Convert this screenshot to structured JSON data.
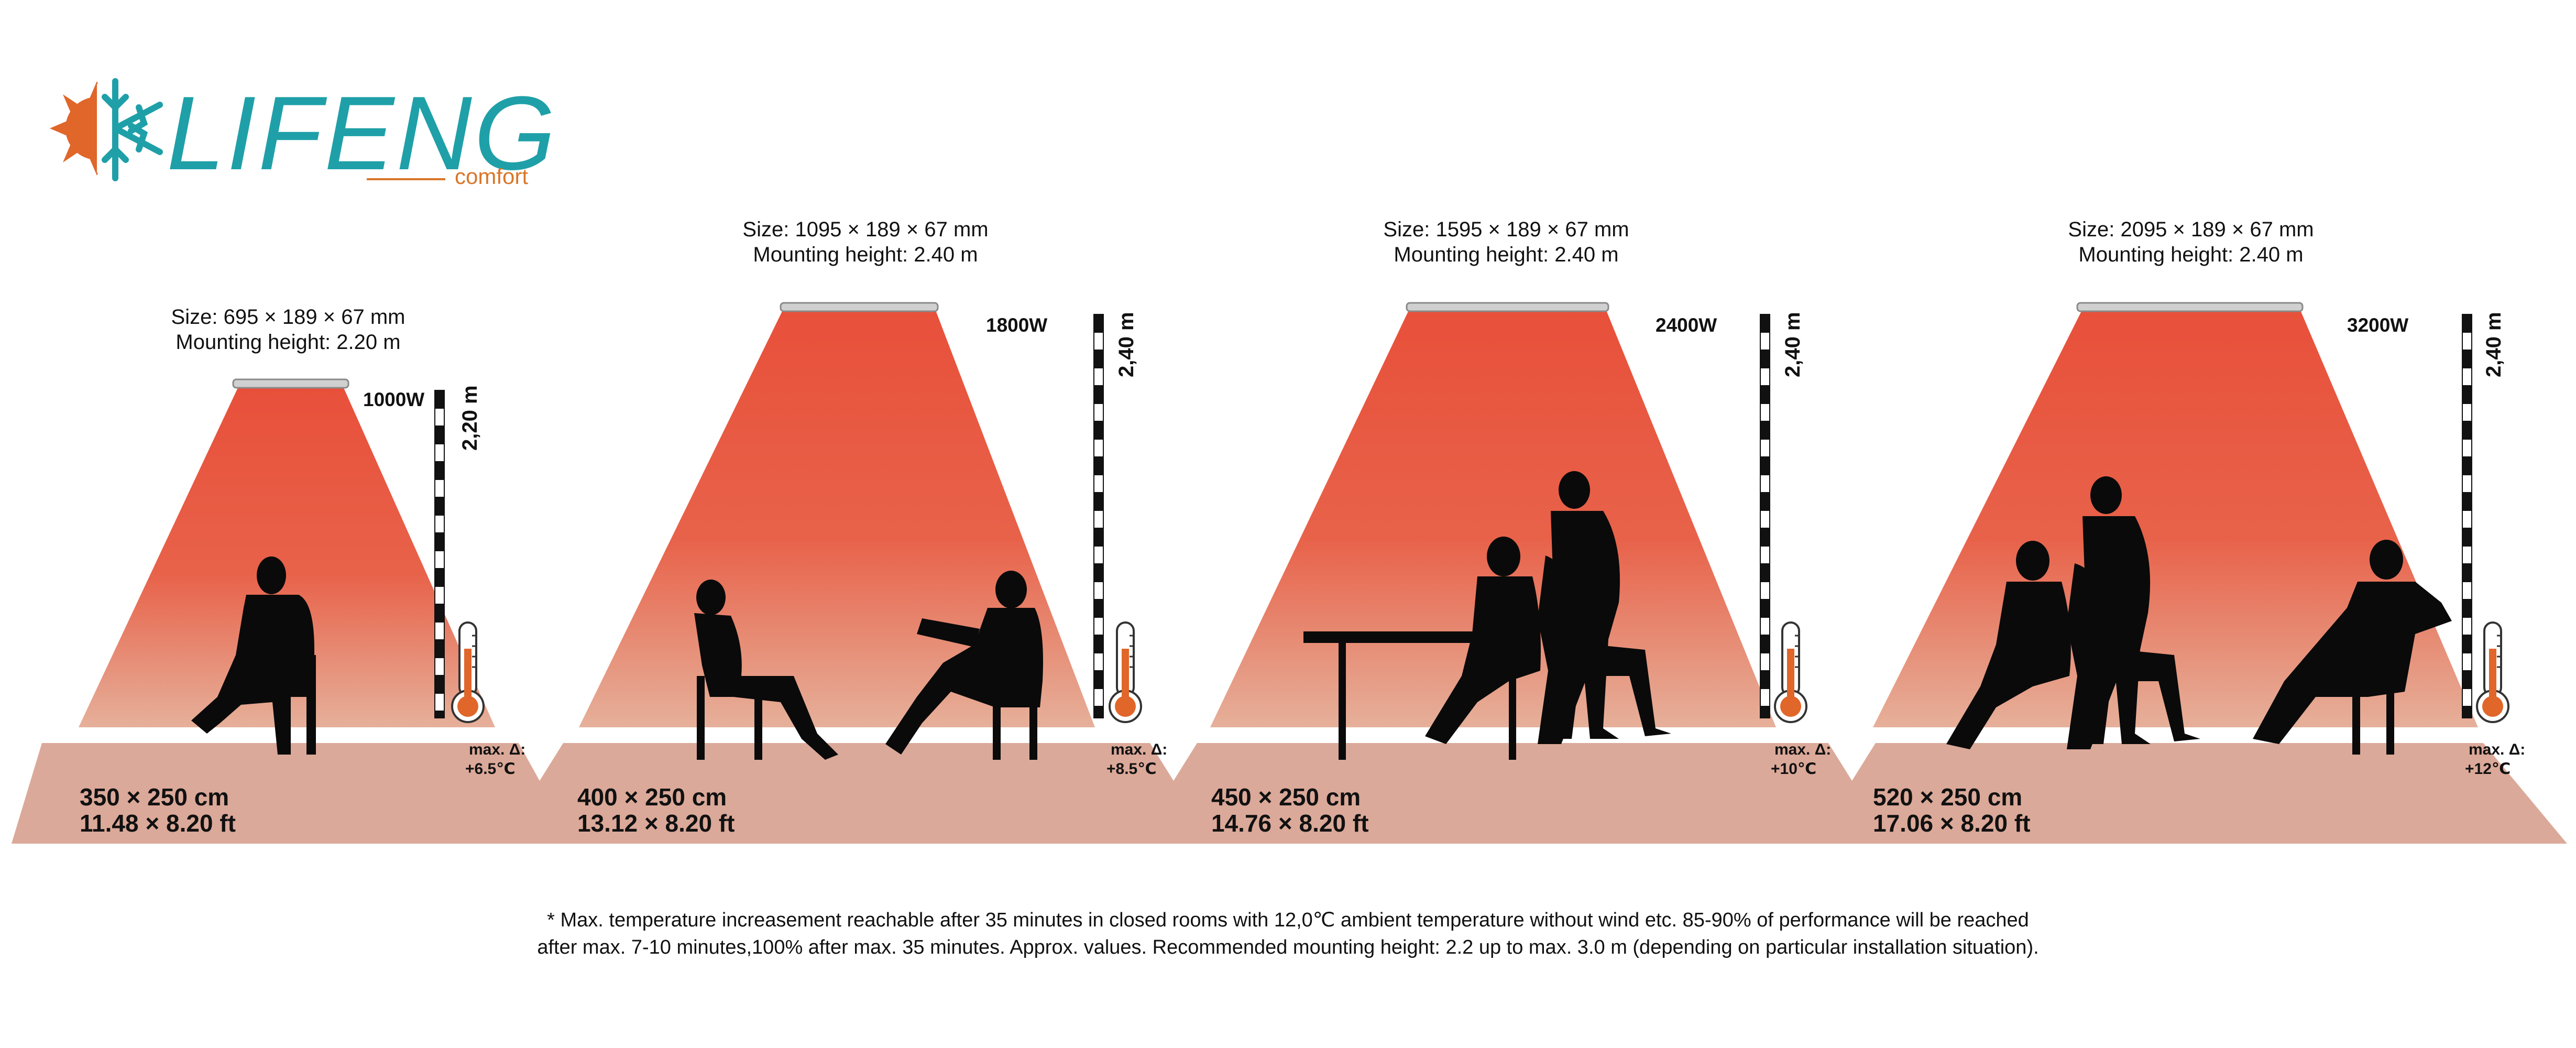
{
  "brand": {
    "name": "LIFENG",
    "tagline": "comfort",
    "color_primary": "#1fa0a8",
    "color_accent": "#e0662a"
  },
  "colors": {
    "heat_top": "#e8503a",
    "heat_bottom": "#e6b09a",
    "floor": "#dba999",
    "silhouette": "#0a0a0a",
    "ruler_dark": "#111111",
    "ruler_light": "#ffffff"
  },
  "heaters": [
    {
      "size": "Size: 695 × 189 × 67 mm",
      "mounting": "Mounting height: 2.20 m",
      "power": "1000W",
      "height": "2,20 m",
      "room_m": "350 × 250 cm",
      "room_ft": "11.48 × 8.20 ft",
      "delta_label": "max. Δ:",
      "delta_value": "+6.5℃"
    },
    {
      "size": "Size: 1095 × 189 × 67 mm",
      "mounting": "Mounting height: 2.40 m",
      "power": "1800W",
      "height": "2,40 m",
      "room_m": "400 × 250 cm",
      "room_ft": "13.12 × 8.20 ft",
      "delta_label": "max. Δ:",
      "delta_value": "+8.5℃"
    },
    {
      "size": "Size: 1595 × 189 × 67 mm",
      "mounting": "Mounting height: 2.40 m",
      "power": "2400W",
      "height": "2,40 m",
      "room_m": "450 × 250 cm",
      "room_ft": "14.76 × 8.20 ft",
      "delta_label": "max. Δ:",
      "delta_value": "+10℃"
    },
    {
      "size": "Size: 2095 × 189 × 67 mm",
      "mounting": "Mounting height: 2.40 m",
      "power": "3200W",
      "height": "2,40 m",
      "room_m": "520 × 250 cm",
      "room_ft": "17.06 × 8.20 ft",
      "delta_label": "max. Δ:",
      "delta_value": "+12℃"
    }
  ],
  "footnote": {
    "line1": "* Max. temperature increasement reachable after 35 minutes in closed rooms with 12,0℃ ambient temperature without wind etc. 85-90% of performance will be reached",
    "line2": "after max. 7-10 minutes,100% after max. 35 minutes. Approx. values. Recommended mounting height: 2.2 up to max. 3.0 m (depending on particular installation situation)."
  }
}
